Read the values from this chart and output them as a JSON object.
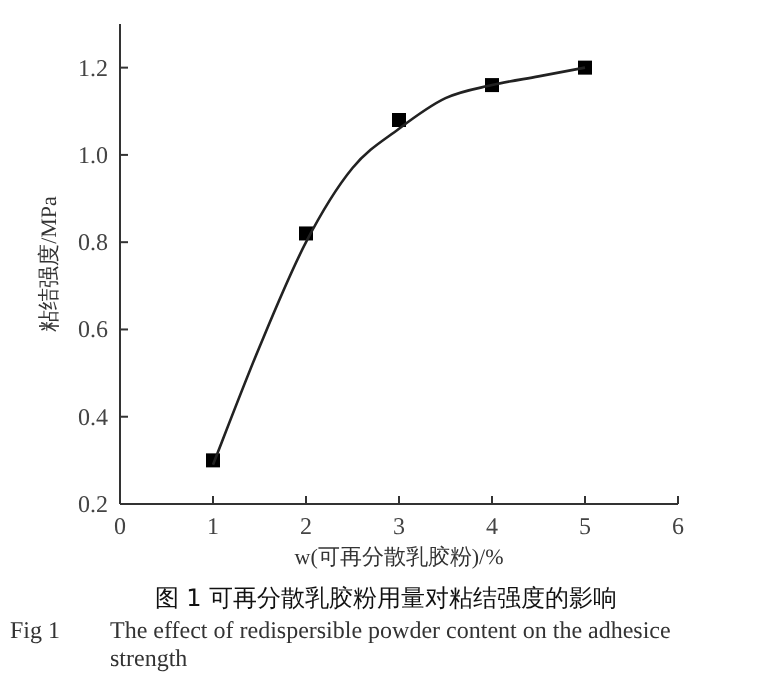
{
  "chart_data": {
    "type": "scatter",
    "xlabel": "w(可再分散乳胶粉)/%",
    "ylabel": "粘结强度/MPa",
    "annotations": [
      "图 1  可再分散乳胶粉用量对粘结强度的影响",
      "Fig 1\tThe effect of redispersible powder content on the adhesice strength"
    ],
    "xlim": [
      0,
      6
    ],
    "ylim": [
      0.2,
      1.3
    ],
    "xticks": [
      0,
      1,
      2,
      3,
      4,
      5,
      6
    ],
    "yticks": [
      0.2,
      0.4,
      0.6,
      0.8,
      {
        "value": 1,
        "label": "1.0"
      },
      1.2
    ],
    "series": [
      {
        "marker": "square",
        "color": "#000000",
        "x": [
          1,
          2,
          3,
          4,
          5
        ],
        "values": [
          0.3,
          0.82,
          1.08,
          1.16,
          1.2
        ]
      },
      {
        "type": "line",
        "marker": "none",
        "line_style": "solid",
        "color": "#222222",
        "x": [
          1,
          1.5,
          2,
          2.5,
          3,
          3.5,
          4,
          4.5,
          5
        ],
        "values": [
          0.29,
          0.56,
          0.8,
          0.97,
          1.06,
          1.13,
          1.16,
          1.18,
          1.2
        ]
      }
    ]
  }
}
